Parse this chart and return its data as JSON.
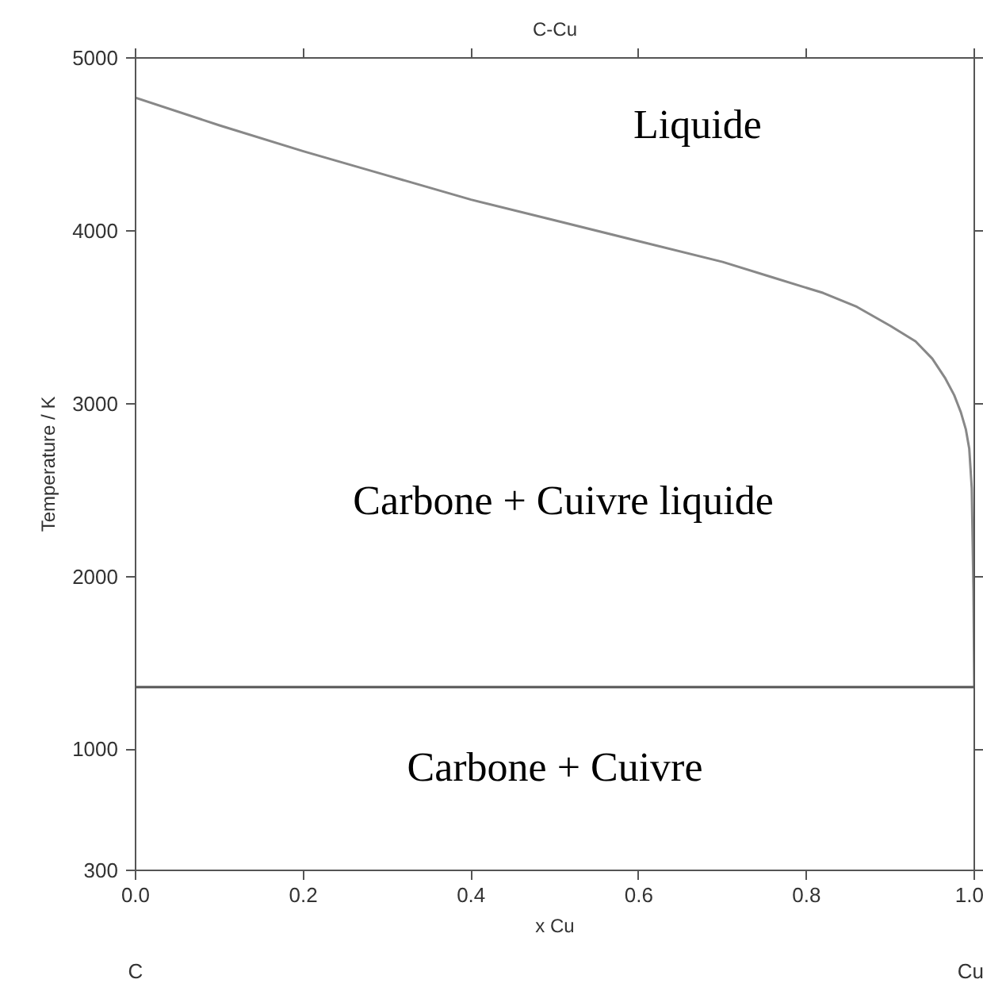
{
  "chart_data": {
    "type": "line",
    "title": "C-Cu",
    "xlabel": "x Cu",
    "ylabel": "Temperature / K",
    "x": [
      0,
      0.1,
      0.2,
      0.3,
      0.4,
      0.5,
      0.6,
      0.7,
      0.76,
      0.82,
      0.86,
      0.9,
      0.93,
      0.95,
      0.965,
      0.976,
      0.984,
      0.99,
      0.994,
      0.997,
      0.999,
      1.0
    ],
    "series": [
      {
        "color": "#888888",
        "values": [
          4770,
          4610,
          4460,
          4320,
          4180,
          4060,
          3940,
          3820,
          3730,
          3640,
          3560,
          3450,
          3360,
          3260,
          3150,
          3050,
          2950,
          2850,
          2740,
          2510,
          1920,
          1360
        ]
      }
    ],
    "xlim": [
      0,
      1
    ],
    "ylim": [
      300,
      5000
    ],
    "xticks": [
      {
        "value": 0,
        "label": "0.0"
      },
      0.2,
      0.4,
      0.6,
      0.8,
      {
        "value": 1,
        "label": "1.0"
      }
    ],
    "yticks": [
      300,
      1000,
      2000,
      3000,
      4000,
      5000
    ],
    "ref_lines": [
      {
        "axis": "y",
        "value": 1360,
        "color": "#555555"
      }
    ],
    "annotations": [
      "Liquide",
      "Carbone + Cuivre liquide",
      "Carbone + Cuivre",
      "C",
      "Cu"
    ],
    "grid": false,
    "marker": "none",
    "line_style": "solid"
  }
}
